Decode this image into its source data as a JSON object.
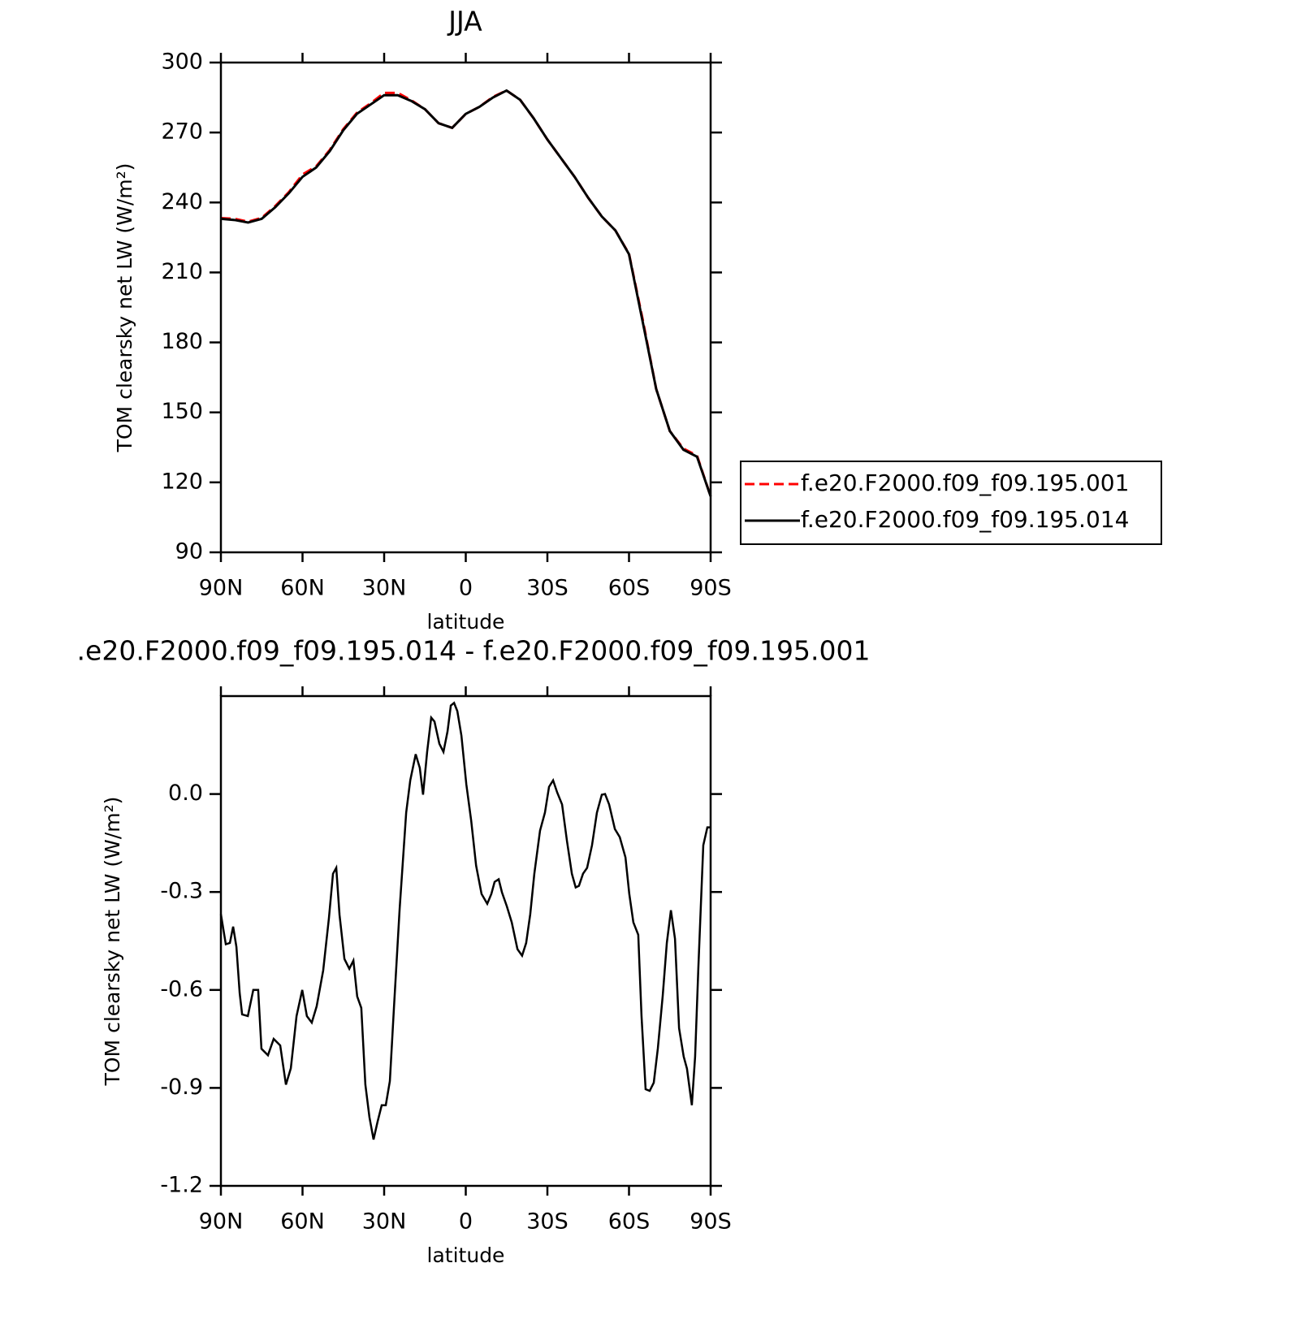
{
  "chart_data": [
    {
      "type": "line",
      "title": "JJA",
      "xlabel": "latitude",
      "ylabel": "TOM clearsky net LW (W/m²)",
      "x": [
        90,
        85,
        80,
        75,
        70,
        65,
        60,
        55,
        50,
        45,
        40,
        35,
        30,
        25,
        20,
        15,
        10,
        5,
        0,
        -5,
        -10,
        -15,
        -20,
        -25,
        -30,
        -35,
        -40,
        -45,
        -50,
        -55,
        -60,
        -65,
        -70,
        -75,
        -80,
        -85,
        -90
      ],
      "series": [
        {
          "name": "f.e20.F2000.f09_f09.195.001",
          "color": "#ff0000",
          "dashed": true,
          "values": [
            233.3,
            233,
            231.8,
            233.4,
            238.5,
            244.5,
            252,
            255.5,
            262.5,
            271.5,
            278.5,
            282.5,
            287,
            287,
            283.8,
            280,
            274,
            272,
            278,
            281,
            285.3,
            288,
            284,
            276,
            267,
            259,
            251,
            242,
            234,
            228,
            218,
            190,
            160,
            142,
            134.5,
            131.5,
            114
          ]
        },
        {
          "name": "f.e20.F2000.f09_f09.195.014",
          "color": "#000000",
          "dashed": false,
          "values": [
            233,
            232.5,
            231.4,
            233,
            238,
            244,
            251,
            255,
            262,
            271,
            278,
            282,
            286,
            286,
            283.5,
            280,
            274,
            272,
            278,
            281,
            285,
            288,
            284,
            276,
            267,
            259,
            251,
            242,
            234,
            228,
            217.8,
            189,
            160,
            142,
            134,
            131,
            114
          ]
        }
      ],
      "xlim": [
        90,
        -90
      ],
      "xticks": [
        {
          "value": 90,
          "label": "90N"
        },
        {
          "value": 60,
          "label": "60N"
        },
        {
          "value": 30,
          "label": "30N"
        },
        0,
        {
          "value": -30,
          "label": "30S"
        },
        {
          "value": -60,
          "label": "60S"
        },
        {
          "value": -90,
          "label": "90S"
        }
      ],
      "ylim": [
        90,
        300
      ],
      "yticks": [
        90,
        120,
        150,
        180,
        210,
        240,
        270,
        300
      ],
      "legend": "outside right"
    },
    {
      "type": "line",
      "title": ".e20.F2000.f09_f09.195.014 - f.e20.F2000.f09_f09.195.001",
      "xlabel": "latitude",
      "ylabel": "TOM clearsky net LW (W/m²)",
      "x": [
        90,
        88.2,
        86.7,
        85.5,
        84.3,
        83.1,
        82.2,
        80.1,
        78.1,
        76.3,
        75.1,
        72.7,
        70.6,
        68.2,
        66.1,
        64.3,
        62.2,
        60.1,
        58.4,
        56.6,
        54.8,
        52.4,
        50.3,
        48.8,
        47.6,
        46.4,
        44.6,
        42.8,
        41.3,
        39.9,
        38.4,
        36.9,
        35.4,
        33.9,
        32.4,
        30.9,
        29.4,
        27.9,
        26.4,
        24.3,
        21.9,
        20.4,
        18.4,
        16.9,
        15.7,
        14.2,
        12.7,
        11.5,
        9.7,
        8.2,
        6.7,
        5.5,
        4.3,
        3.1,
        1.6,
        -0.2,
        -2.0,
        -3.8,
        -5.8,
        -7.9,
        -9.4,
        -10.6,
        -12.1,
        -13.3,
        -15.1,
        -16.9,
        -19.0,
        -20.7,
        -22.2,
        -23.7,
        -25.2,
        -27.3,
        -29.1,
        -30.6,
        -32.1,
        -33.6,
        -35.4,
        -37.2,
        -39.0,
        -40.4,
        -41.6,
        -43.1,
        -44.6,
        -46.4,
        -48.2,
        -50.0,
        -51.2,
        -52.7,
        -54.8,
        -56.6,
        -58.7,
        -60.1,
        -61.6,
        -63.4,
        -64.6,
        -66.1,
        -67.6,
        -69.1,
        -70.6,
        -72.4,
        -73.9,
        -75.4,
        -76.9,
        -78.4,
        -80.1,
        -81.3,
        -83.1,
        -84.3,
        -85.5,
        -87.3,
        -88.8,
        -90
      ],
      "values": [
        -0.368,
        -0.46,
        -0.456,
        -0.406,
        -0.468,
        -0.61,
        -0.675,
        -0.68,
        -0.6,
        -0.6,
        -0.78,
        -0.8,
        -0.75,
        -0.77,
        -0.89,
        -0.84,
        -0.68,
        -0.6,
        -0.68,
        -0.7,
        -0.65,
        -0.54,
        -0.38,
        -0.244,
        -0.226,
        -0.37,
        -0.505,
        -0.535,
        -0.51,
        -0.62,
        -0.655,
        -0.89,
        -0.99,
        -1.058,
        -1.003,
        -0.953,
        -0.953,
        -0.879,
        -0.655,
        -0.351,
        -0.057,
        0.042,
        0.122,
        0.08,
        -0.002,
        0.129,
        0.234,
        0.222,
        0.154,
        0.129,
        0.192,
        0.271,
        0.279,
        0.254,
        0.179,
        0.03,
        -0.082,
        -0.219,
        -0.306,
        -0.336,
        -0.306,
        -0.269,
        -0.261,
        -0.301,
        -0.344,
        -0.393,
        -0.475,
        -0.495,
        -0.456,
        -0.368,
        -0.244,
        -0.112,
        -0.057,
        0.022,
        0.042,
        0.005,
        -0.032,
        -0.144,
        -0.244,
        -0.286,
        -0.281,
        -0.244,
        -0.226,
        -0.157,
        -0.057,
        -0.002,
        0,
        -0.032,
        -0.107,
        -0.132,
        -0.194,
        -0.306,
        -0.393,
        -0.431,
        -0.68,
        -0.904,
        -0.909,
        -0.884,
        -0.779,
        -0.617,
        -0.456,
        -0.356,
        -0.443,
        -0.717,
        -0.804,
        -0.841,
        -0.953,
        -0.804,
        -0.53,
        -0.157,
        -0.102,
        -0.102
      ],
      "color": "#000000",
      "xlim": [
        90,
        -90
      ],
      "xticks": [
        {
          "value": 90,
          "label": "90N"
        },
        {
          "value": 60,
          "label": "60N"
        },
        {
          "value": 30,
          "label": "30N"
        },
        0,
        {
          "value": -30,
          "label": "30S"
        },
        {
          "value": -60,
          "label": "60S"
        },
        {
          "value": -90,
          "label": "90S"
        }
      ],
      "ylim": [
        -1.2,
        0.3
      ],
      "yticks": [
        -1.2,
        -0.9,
        -0.6,
        -0.3,
        {
          "value": 0,
          "label": "0.0"
        }
      ]
    }
  ]
}
